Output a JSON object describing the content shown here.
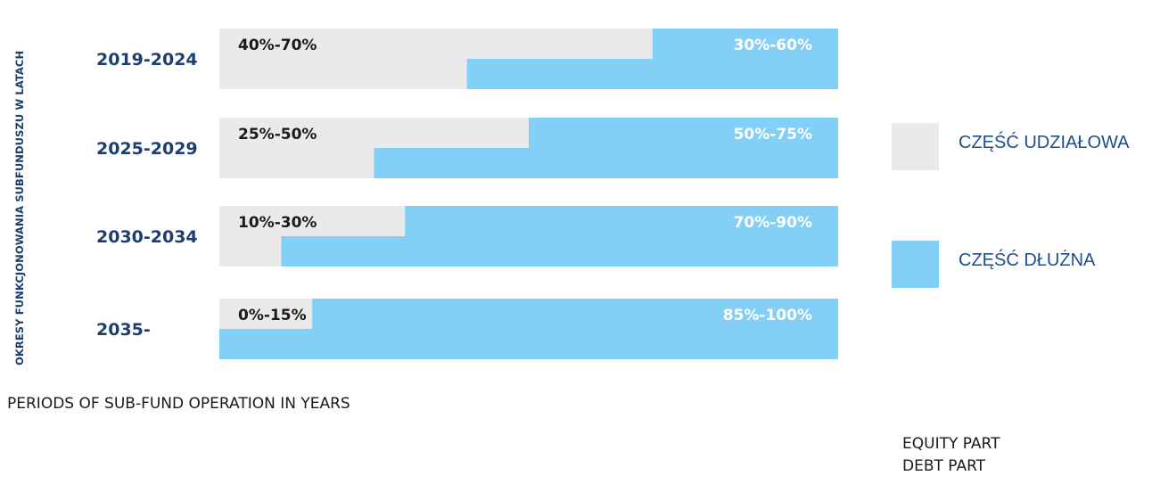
{
  "chart_data": {
    "type": "bar",
    "ylabel": "OKRESY FUNKCJONOWANIA SUBFUNDUSZU W LATACH",
    "xlim": [
      0,
      100
    ],
    "categories": [
      "2019-2024",
      "2025-2029",
      "2030-2034",
      "2035-"
    ],
    "series": [
      {
        "name": "CZĘŚĆ UDZIAŁOWA",
        "color": "#eaeaea",
        "ranges": [
          [
            40,
            70
          ],
          [
            25,
            50
          ],
          [
            10,
            30
          ],
          [
            0,
            15
          ]
        ],
        "labels": [
          "40%-70%",
          "25%-50%",
          "10%-30%",
          "0%-15%"
        ]
      },
      {
        "name": "CZĘŚĆ DŁUŻNA",
        "color": "#84cff5",
        "ranges": [
          [
            30,
            60
          ],
          [
            50,
            75
          ],
          [
            70,
            90
          ],
          [
            85,
            100
          ]
        ],
        "labels": [
          "30%-60%",
          "50%-75%",
          "70%-90%",
          "85%-100%"
        ]
      }
    ],
    "legend_position": "right",
    "grid": false
  },
  "english": {
    "periods": "PERIODS OF SUB-FUND OPERATION IN YEARS",
    "equity": "EQUITY PART",
    "debt": "DEBT PART"
  }
}
